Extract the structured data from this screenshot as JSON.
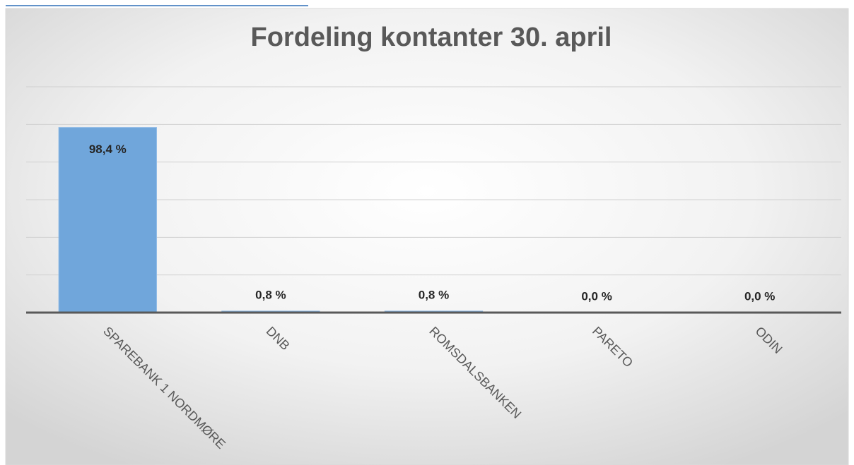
{
  "chart_data": {
    "type": "bar",
    "title": "Fordeling kontanter 30. april",
    "categories": [
      "SPAREBANK 1 NORDMØRE",
      "DNB",
      "ROMSDALSBANKEN",
      "PARETO",
      "ODIN"
    ],
    "values": [
      98.4,
      0.8,
      0.8,
      0.0,
      0.0
    ],
    "value_labels": [
      "98,4 %",
      "0,8 %",
      "0,8 %",
      "0,0 %",
      "0,0 %"
    ],
    "color": "#70a6db",
    "ylim": [
      0,
      120
    ],
    "yticks": [
      0,
      20,
      40,
      60,
      80,
      100,
      120
    ],
    "grid": true
  }
}
